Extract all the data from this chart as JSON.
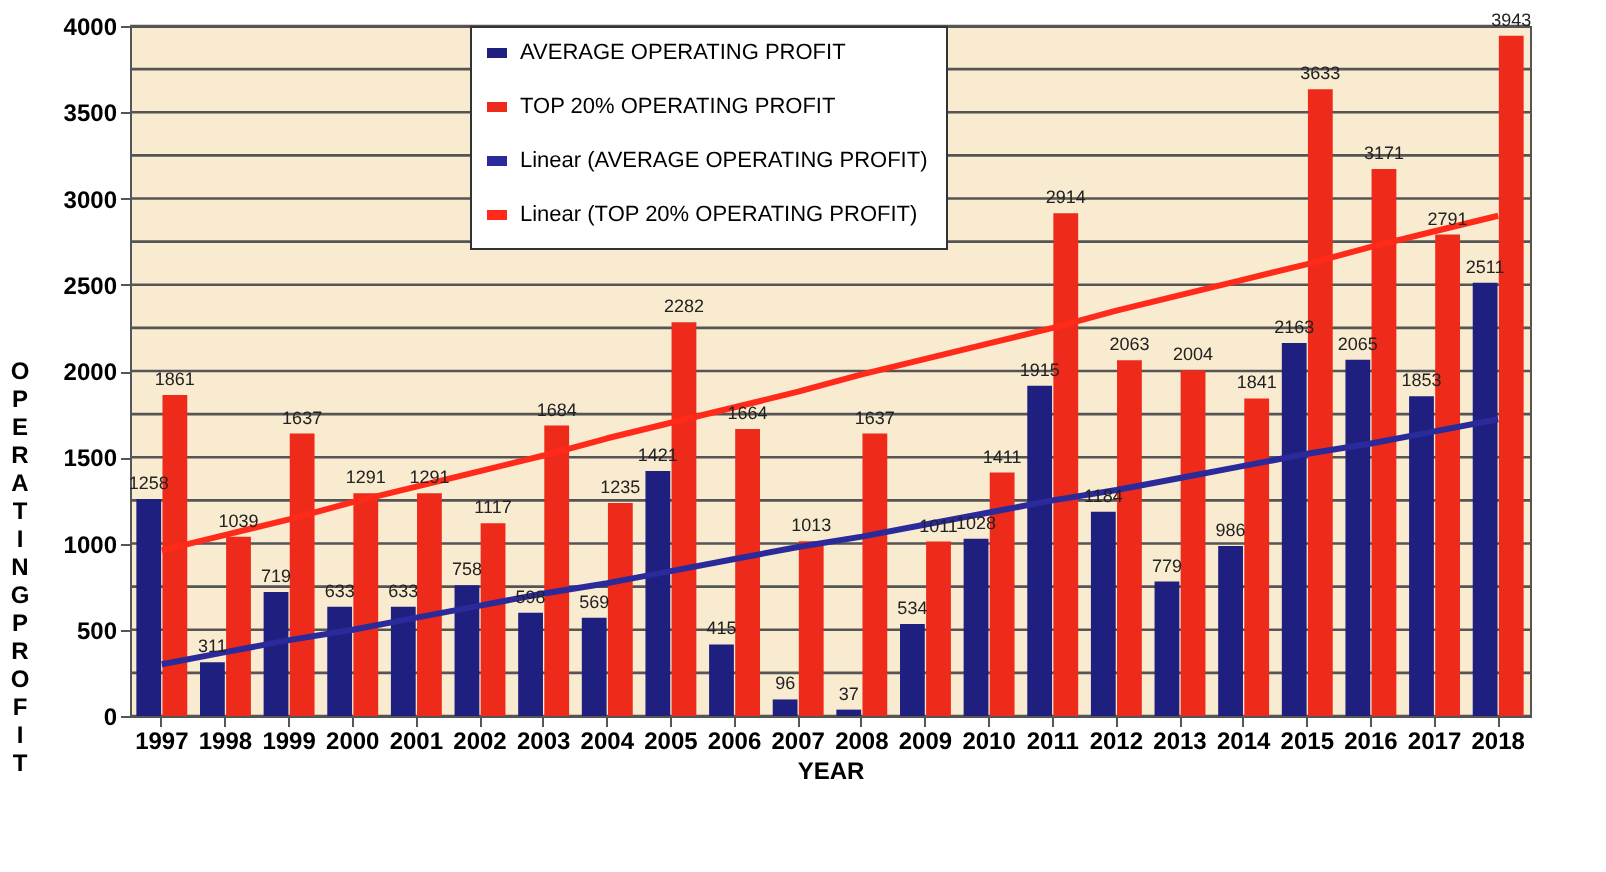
{
  "chart_data": {
    "type": "bar",
    "xlabel": "YEAR",
    "ylabel": "OPERATING PROFIT",
    "categories": [
      "1997",
      "1998",
      "1999",
      "2000",
      "2001",
      "2002",
      "2003",
      "2004",
      "2005",
      "2006",
      "2007",
      "2008",
      "2009",
      "2010",
      "2011",
      "2012",
      "2013",
      "2014",
      "2015",
      "2016",
      "2017",
      "2018"
    ],
    "series": [
      {
        "name": "AVERAGE OPERATING PROFIT",
        "color": "#1f1f80",
        "values": [
          1258,
          311,
          719,
          633,
          633,
          758,
          598,
          569,
          1421,
          415,
          96,
          37,
          534,
          1028,
          1915,
          1184,
          779,
          986,
          2163,
          2065,
          1853,
          2511
        ],
        "value_labels": [
          "1258",
          "311",
          "719",
          "633",
          "633",
          "758",
          "598",
          "569",
          "1421",
          "415",
          "96",
          "37",
          "534",
          "1028",
          "1915",
          "1184",
          "779",
          "986",
          "2163",
          "2065",
          "1853",
          "2511"
        ]
      },
      {
        "name": "TOP 20% OPERATING PROFIT",
        "color": "#ee2a1b",
        "values": [
          1861,
          1039,
          1637,
          1291,
          1291,
          1117,
          1684,
          1235,
          2282,
          1664,
          1013,
          1637,
          1011,
          1411,
          2914,
          2063,
          2004,
          1841,
          3633,
          3171,
          2791,
          3943
        ],
        "value_labels": [
          "1861",
          "1039",
          "1637",
          "1291",
          "1291",
          "1117",
          "1684",
          "1235",
          "2282",
          "1664",
          "1013",
          "1637",
          "1011",
          "1411",
          "2914",
          "2063",
          "2004",
          "1841",
          "3633",
          "3171",
          "2791",
          "3943"
        ]
      },
      {
        "name": "Linear  (AVERAGE OPERATING PROFIT)",
        "type": "line",
        "color": "#2a2a9a",
        "values": [
          300,
          370,
          440,
          500,
          570,
          640,
          710,
          770,
          840,
          910,
          980,
          1040,
          1110,
          1180,
          1250,
          1310,
          1380,
          1450,
          1520,
          1580,
          1650,
          1720
        ]
      },
      {
        "name": "Linear  (TOP 20% OPERATING PROFIT)",
        "type": "line",
        "color": "#ff2a1a",
        "values": [
          960,
          1050,
          1140,
          1240,
          1330,
          1420,
          1510,
          1610,
          1700,
          1790,
          1880,
          1980,
          2070,
          2160,
          2250,
          2350,
          2440,
          2530,
          2620,
          2720,
          2810,
          2900
        ]
      }
    ],
    "ylim": [
      0,
      4000
    ],
    "yticks": [
      0,
      {
        "value": 250,
        "label": null
      },
      500,
      {
        "value": 750,
        "label": null
      },
      1000,
      {
        "value": 1250,
        "label": null
      },
      1500,
      {
        "value": 1750,
        "label": null
      },
      2000,
      {
        "value": 2250,
        "label": null
      },
      2500,
      {
        "value": 2750,
        "label": null
      },
      3000,
      {
        "value": 3250,
        "label": null
      },
      3500,
      {
        "value": 3750,
        "label": null
      },
      4000
    ],
    "grid": "y",
    "legend": "top"
  }
}
